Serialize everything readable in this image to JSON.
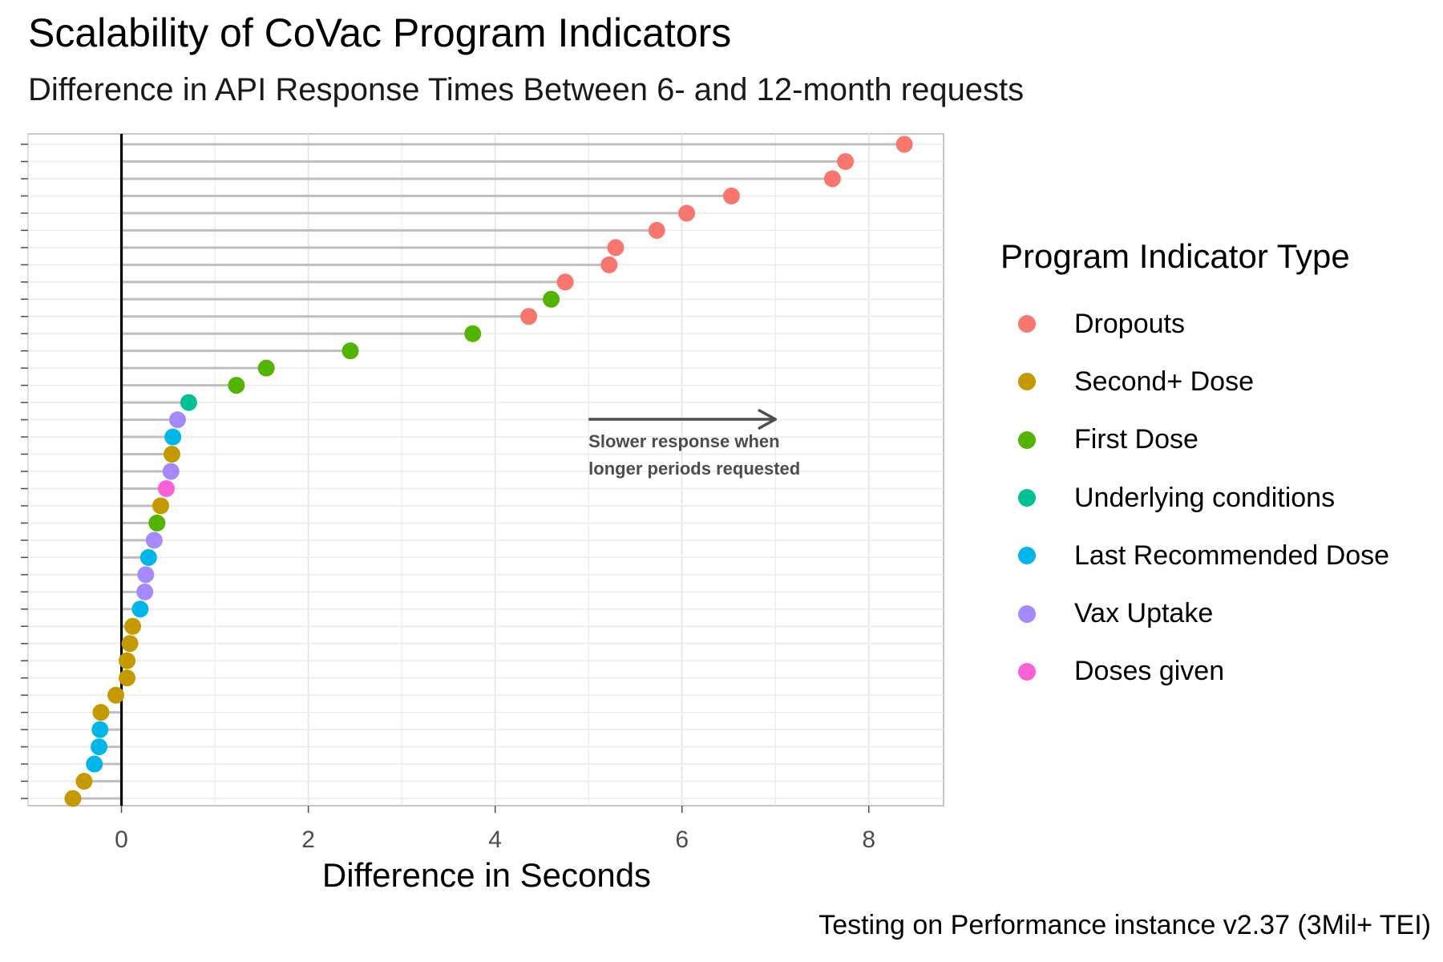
{
  "chart_data": {
    "type": "lollipop",
    "title": "Scalability of CoVac Program Indicators",
    "subtitle": "Difference in API Response Times Between 6- and 12-month requests",
    "xlabel": "Difference in Seconds",
    "ylabel": "",
    "xlim": [
      -1.0,
      8.8
    ],
    "x_ticks": [
      0,
      2,
      4,
      6,
      8
    ],
    "caption": "Testing on Performance instance v2.37 (3Mil+ TEI)",
    "grid": true,
    "legend": {
      "title": "Program Indicator Type",
      "position": "right",
      "entries": [
        {
          "name": "Dropouts",
          "color": "#F8766D"
        },
        {
          "name": "Second+ Dose",
          "color": "#C49A00"
        },
        {
          "name": "First Dose",
          "color": "#53B400"
        },
        {
          "name": "Underlying conditions",
          "color": "#00C094"
        },
        {
          "name": "Last Recommended Dose",
          "color": "#00B6EB"
        },
        {
          "name": "Vax Uptake",
          "color": "#A58AFF"
        },
        {
          "name": "Doses given",
          "color": "#FB61D7"
        }
      ]
    },
    "annotation": {
      "lines": [
        "Slower response when",
        "longer periods requested"
      ],
      "arrow_from_x": 5.0,
      "arrow_to_x": 7.0
    },
    "points": [
      {
        "value": 8.38,
        "type": "Dropouts"
      },
      {
        "value": 7.75,
        "type": "Dropouts"
      },
      {
        "value": 7.61,
        "type": "Dropouts"
      },
      {
        "value": 6.53,
        "type": "Dropouts"
      },
      {
        "value": 6.05,
        "type": "Dropouts"
      },
      {
        "value": 5.73,
        "type": "Dropouts"
      },
      {
        "value": 5.29,
        "type": "Dropouts"
      },
      {
        "value": 5.22,
        "type": "Dropouts"
      },
      {
        "value": 4.75,
        "type": "Dropouts"
      },
      {
        "value": 4.6,
        "type": "First Dose"
      },
      {
        "value": 4.36,
        "type": "Dropouts"
      },
      {
        "value": 3.76,
        "type": "First Dose"
      },
      {
        "value": 2.45,
        "type": "First Dose"
      },
      {
        "value": 1.55,
        "type": "First Dose"
      },
      {
        "value": 1.23,
        "type": "First Dose"
      },
      {
        "value": 0.72,
        "type": "Underlying conditions"
      },
      {
        "value": 0.6,
        "type": "Vax Uptake"
      },
      {
        "value": 0.55,
        "type": "Last Recommended Dose"
      },
      {
        "value": 0.54,
        "type": "Second+ Dose"
      },
      {
        "value": 0.53,
        "type": "Vax Uptake"
      },
      {
        "value": 0.48,
        "type": "Doses given"
      },
      {
        "value": 0.42,
        "type": "Second+ Dose"
      },
      {
        "value": 0.38,
        "type": "First Dose"
      },
      {
        "value": 0.35,
        "type": "Vax Uptake"
      },
      {
        "value": 0.29,
        "type": "Last Recommended Dose"
      },
      {
        "value": 0.26,
        "type": "Vax Uptake"
      },
      {
        "value": 0.25,
        "type": "Vax Uptake"
      },
      {
        "value": 0.2,
        "type": "Last Recommended Dose"
      },
      {
        "value": 0.12,
        "type": "Second+ Dose"
      },
      {
        "value": 0.09,
        "type": "Second+ Dose"
      },
      {
        "value": 0.06,
        "type": "Second+ Dose"
      },
      {
        "value": 0.06,
        "type": "Second+ Dose"
      },
      {
        "value": -0.06,
        "type": "Second+ Dose"
      },
      {
        "value": -0.22,
        "type": "Second+ Dose"
      },
      {
        "value": -0.23,
        "type": "Last Recommended Dose"
      },
      {
        "value": -0.24,
        "type": "Last Recommended Dose"
      },
      {
        "value": -0.29,
        "type": "Last Recommended Dose"
      },
      {
        "value": -0.4,
        "type": "Second+ Dose"
      },
      {
        "value": -0.52,
        "type": "Second+ Dose"
      }
    ]
  }
}
